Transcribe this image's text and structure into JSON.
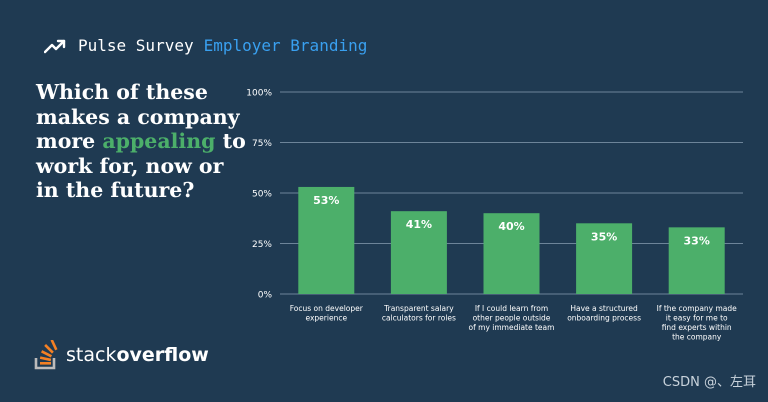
{
  "header": {
    "survey_label": "Pulse Survey",
    "topic_label": "Employer Branding"
  },
  "question": {
    "part1": "Which of these makes a company more",
    "highlight": "appealing",
    "part2": "to work for, now or in the future?"
  },
  "logo": {
    "word1": "stack",
    "word2": "overflow"
  },
  "watermark": "CSDN @、左耳",
  "colors": {
    "background": "#1f3a52",
    "bar": "#4caf6a",
    "accent": "#39a0f0",
    "highlight": "#4caf6a"
  },
  "chart_data": {
    "type": "bar",
    "title": "",
    "xlabel": "",
    "ylabel": "",
    "ylim": [
      0,
      100
    ],
    "yticks": [
      "100%",
      "75%",
      "50%",
      "25%",
      "0%"
    ],
    "grid": true,
    "categories": [
      "Focus on developer experience",
      "Transparent salary calculators for roles",
      "If I could learn from other people outside of my immediate team",
      "Have a structured onboarding process",
      "If the company made it easy for me to find experts within the company"
    ],
    "values": [
      53,
      41,
      40,
      35,
      33
    ],
    "value_labels": [
      "53%",
      "41%",
      "40%",
      "35%",
      "33%"
    ]
  }
}
